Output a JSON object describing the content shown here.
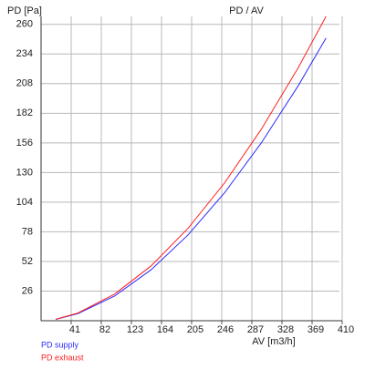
{
  "chart_data": {
    "type": "line",
    "title": "PD / AV",
    "y_label": "PD [Pa]",
    "x_label": "AV [m3/h]",
    "x": [
      20,
      50,
      100,
      150,
      200,
      250,
      300,
      350,
      388
    ],
    "series": [
      {
        "name": "PD supply",
        "color": "#2b2bff",
        "values": [
          1.2,
          6.2,
          21.6,
          44.8,
          75.2,
          112.4,
          156.1,
          206.0,
          248
        ]
      },
      {
        "name": "PD exhaust",
        "color": "#ff2020",
        "values": [
          1.3,
          6.7,
          23.3,
          48.2,
          81.0,
          121.0,
          168.1,
          221.8,
          267
        ]
      }
    ],
    "xlim": [
      0,
      410
    ],
    "ylim": [
      0,
      267
    ],
    "xticks": [
      41,
      82,
      123,
      164,
      205,
      246,
      287,
      328,
      369,
      410
    ],
    "yticks": [
      26,
      52,
      78,
      104,
      130,
      156,
      182,
      208,
      234,
      260
    ],
    "grid": true
  }
}
